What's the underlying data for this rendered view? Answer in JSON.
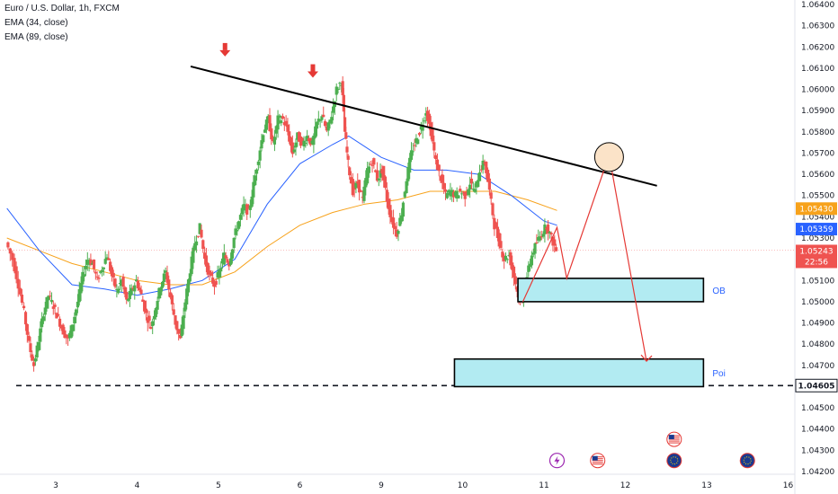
{
  "chart_title": "Euro / U.S. Dollar, 1h, FXCM",
  "legend": [
    "EMA (34, close)",
    "EMA (89, close)"
  ],
  "colors": {
    "up": "#26a69a",
    "up_candle": "#4caf50",
    "down": "#ef5350",
    "ema34": "#2962ff",
    "ema89": "#f7a21b",
    "zone_fill": "#b2ebf2",
    "arrow": "#e53935",
    "circle_fill": "#fbe3c8",
    "circle_stroke": "#c9461e"
  },
  "chart_data": {
    "type": "candlestick",
    "symbol": "EURUSD",
    "ylim": [
      1.042,
      1.064
    ],
    "xlim": [
      2.4,
      16.0
    ],
    "y_ticks": [
      "1.06400",
      "1.06300",
      "1.06200",
      "1.06100",
      "1.06000",
      "1.05900",
      "1.05800",
      "1.05700",
      "1.05600",
      "1.05500",
      "1.05400",
      "1.05300",
      "1.05200",
      "1.05100",
      "1.05000",
      "1.04900",
      "1.04800",
      "1.04700",
      "1.04600",
      "1.04500",
      "1.04400",
      "1.04300",
      "1.04200"
    ],
    "x_ticks": [
      {
        "label": "3",
        "x": 3
      },
      {
        "label": "4",
        "x": 4
      },
      {
        "label": "5",
        "x": 5
      },
      {
        "label": "6",
        "x": 6
      },
      {
        "label": "9",
        "x": 7
      },
      {
        "label": "10",
        "x": 8
      },
      {
        "label": "11",
        "x": 9
      },
      {
        "label": "12",
        "x": 10
      },
      {
        "label": "13",
        "x": 11
      },
      {
        "label": "16",
        "x": 12
      }
    ],
    "price_labels": [
      {
        "value": "1.05430",
        "color": "#f7a21b",
        "price": 1.0543
      },
      {
        "value": "1.05359",
        "color": "#2962ff",
        "price": 1.05359
      },
      {
        "value": "1.05243",
        "color": "#ef5350",
        "price": 1.05243
      },
      {
        "value": "22:56",
        "color": "#ef5350",
        "price": 1.0521
      },
      {
        "value": "1.04605",
        "color": "#131722",
        "price": 1.04605
      }
    ],
    "ohlc_path": [
      [
        2.4,
        1.0528
      ],
      [
        2.48,
        1.052
      ],
      [
        2.55,
        1.0508
      ],
      [
        2.62,
        1.0495
      ],
      [
        2.68,
        1.048
      ],
      [
        2.74,
        1.047
      ],
      [
        2.8,
        1.0482
      ],
      [
        2.86,
        1.0495
      ],
      [
        2.92,
        1.0503
      ],
      [
        2.98,
        1.0498
      ],
      [
        3.04,
        1.0492
      ],
      [
        3.1,
        1.0486
      ],
      [
        3.16,
        1.0482
      ],
      [
        3.22,
        1.049
      ],
      [
        3.28,
        1.05
      ],
      [
        3.34,
        1.0512
      ],
      [
        3.4,
        1.052
      ],
      [
        3.46,
        1.0518
      ],
      [
        3.52,
        1.051
      ],
      [
        3.58,
        1.0516
      ],
      [
        3.64,
        1.0522
      ],
      [
        3.7,
        1.0512
      ],
      [
        3.76,
        1.0505
      ],
      [
        3.82,
        1.051
      ],
      [
        3.88,
        1.05
      ],
      [
        3.94,
        1.0505
      ],
      [
        4.0,
        1.051
      ],
      [
        4.06,
        1.0503
      ],
      [
        4.12,
        1.0494
      ],
      [
        4.18,
        1.0488
      ],
      [
        4.24,
        1.0498
      ],
      [
        4.3,
        1.0508
      ],
      [
        4.36,
        1.0514
      ],
      [
        4.42,
        1.0502
      ],
      [
        4.48,
        1.049
      ],
      [
        4.54,
        1.0482
      ],
      [
        4.6,
        1.05
      ],
      [
        4.66,
        1.0515
      ],
      [
        4.72,
        1.0528
      ],
      [
        4.78,
        1.0535
      ],
      [
        4.84,
        1.052
      ],
      [
        4.9,
        1.0512
      ],
      [
        4.96,
        1.0508
      ],
      [
        5.02,
        1.0514
      ],
      [
        5.08,
        1.0522
      ],
      [
        5.14,
        1.0518
      ],
      [
        5.2,
        1.053
      ],
      [
        5.26,
        1.0538
      ],
      [
        5.32,
        1.0545
      ],
      [
        5.38,
        1.0542
      ],
      [
        5.44,
        1.0555
      ],
      [
        5.5,
        1.0568
      ],
      [
        5.56,
        1.058
      ],
      [
        5.62,
        1.0586
      ],
      [
        5.68,
        1.0574
      ],
      [
        5.74,
        1.0586
      ],
      [
        5.8,
        1.0586
      ],
      [
        5.86,
        1.058
      ],
      [
        5.92,
        1.057
      ],
      [
        5.98,
        1.0578
      ],
      [
        6.04,
        1.0574
      ],
      [
        6.1,
        1.0578
      ],
      [
        6.16,
        1.0574
      ],
      [
        6.22,
        1.0584
      ],
      [
        6.28,
        1.0588
      ],
      [
        6.34,
        1.058
      ],
      [
        6.4,
        1.0588
      ],
      [
        6.46,
        1.06
      ],
      [
        6.52,
        1.0604
      ],
      [
        6.56,
        1.058
      ],
      [
        6.6,
        1.0565
      ],
      [
        6.66,
        1.0552
      ],
      [
        6.72,
        1.0556
      ],
      [
        6.78,
        1.0548
      ],
      [
        6.84,
        1.0562
      ],
      [
        6.9,
        1.0566
      ],
      [
        6.96,
        1.0558
      ],
      [
        7.02,
        1.0562
      ],
      [
        7.08,
        1.0548
      ],
      [
        7.14,
        1.0538
      ],
      [
        7.2,
        1.0532
      ],
      [
        7.26,
        1.0542
      ],
      [
        7.32,
        1.0558
      ],
      [
        7.38,
        1.057
      ],
      [
        7.44,
        1.0576
      ],
      [
        7.5,
        1.0582
      ],
      [
        7.56,
        1.059
      ],
      [
        7.62,
        1.058
      ],
      [
        7.68,
        1.0566
      ],
      [
        7.74,
        1.0558
      ],
      [
        7.8,
        1.055
      ],
      [
        7.86,
        1.0552
      ],
      [
        7.92,
        1.055
      ],
      [
        7.98,
        1.0552
      ],
      [
        8.04,
        1.055
      ],
      [
        8.1,
        1.0556
      ],
      [
        8.16,
        1.0552
      ],
      [
        8.22,
        1.0562
      ],
      [
        8.28,
        1.0566
      ],
      [
        8.34,
        1.0552
      ],
      [
        8.4,
        1.0536
      ],
      [
        8.46,
        1.0528
      ],
      [
        8.52,
        1.052
      ],
      [
        8.58,
        1.0522
      ],
      [
        8.64,
        1.0512
      ],
      [
        8.7,
        1.0502
      ],
      [
        8.74,
        1.05
      ],
      [
        8.8,
        1.0512
      ],
      [
        8.86,
        1.0522
      ],
      [
        8.92,
        1.0528
      ],
      [
        8.98,
        1.0532
      ],
      [
        9.04,
        1.0536
      ],
      [
        9.1,
        1.053
      ],
      [
        9.16,
        1.0524
      ]
    ],
    "ema34_path": [
      [
        2.4,
        1.0544
      ],
      [
        2.8,
        1.0524
      ],
      [
        3.2,
        1.0508
      ],
      [
        3.6,
        1.0506
      ],
      [
        4.0,
        1.0503
      ],
      [
        4.4,
        1.0506
      ],
      [
        4.8,
        1.051
      ],
      [
        5.2,
        1.052
      ],
      [
        5.6,
        1.0546
      ],
      [
        6.0,
        1.0565
      ],
      [
        6.4,
        1.0574
      ],
      [
        6.6,
        1.0578
      ],
      [
        7.0,
        1.0568
      ],
      [
        7.4,
        1.0562
      ],
      [
        7.8,
        1.0562
      ],
      [
        8.2,
        1.056
      ],
      [
        8.6,
        1.055
      ],
      [
        9.0,
        1.0538
      ],
      [
        9.16,
        1.0536
      ]
    ],
    "ema89_path": [
      [
        2.4,
        1.053
      ],
      [
        2.8,
        1.0524
      ],
      [
        3.2,
        1.0518
      ],
      [
        3.6,
        1.0514
      ],
      [
        4.0,
        1.051
      ],
      [
        4.4,
        1.0508
      ],
      [
        4.8,
        1.0508
      ],
      [
        5.2,
        1.0514
      ],
      [
        5.6,
        1.0526
      ],
      [
        6.0,
        1.0536
      ],
      [
        6.4,
        1.0542
      ],
      [
        6.8,
        1.0546
      ],
      [
        7.2,
        1.0548
      ],
      [
        7.6,
        1.0552
      ],
      [
        8.0,
        1.0552
      ],
      [
        8.4,
        1.0552
      ],
      [
        8.8,
        1.0548
      ],
      [
        9.16,
        1.0543
      ]
    ],
    "trendline": [
      [
        5.1,
        1.061
      ],
      [
        10.3,
        1.0558
      ]
    ],
    "peak_arrows": [
      [
        5.08,
        1.061
      ],
      [
        6.16,
        1.06
      ]
    ],
    "projection_path": [
      [
        8.74,
        1.05
      ],
      [
        9.16,
        1.0535
      ],
      [
        9.28,
        1.0511
      ],
      [
        9.8,
        1.0569
      ],
      [
        10.26,
        1.0472
      ]
    ],
    "target_circle": [
      9.8,
      1.0569
    ],
    "zones": [
      {
        "label": "OB",
        "x": [
          8.68,
          10.96
        ],
        "y": [
          1.05,
          1.0511
        ]
      },
      {
        "label": "Poi",
        "x": [
          7.9,
          10.96
        ],
        "y": [
          1.046,
          1.0473
        ]
      }
    ],
    "support_level": 1.04605,
    "event_icons": [
      {
        "x": 9.16,
        "price": 1.04252,
        "kind": "lightning-icon"
      },
      {
        "x": 9.66,
        "price": 1.04252,
        "kind": "us-flag-icon"
      },
      {
        "x": 10.6,
        "price": 1.04252,
        "kind": "eu-flag-icon"
      },
      {
        "x": 10.6,
        "price": 1.04352,
        "kind": "us-flag-icon"
      },
      {
        "x": 11.5,
        "price": 1.04252,
        "kind": "eu-flag-icon"
      }
    ]
  }
}
